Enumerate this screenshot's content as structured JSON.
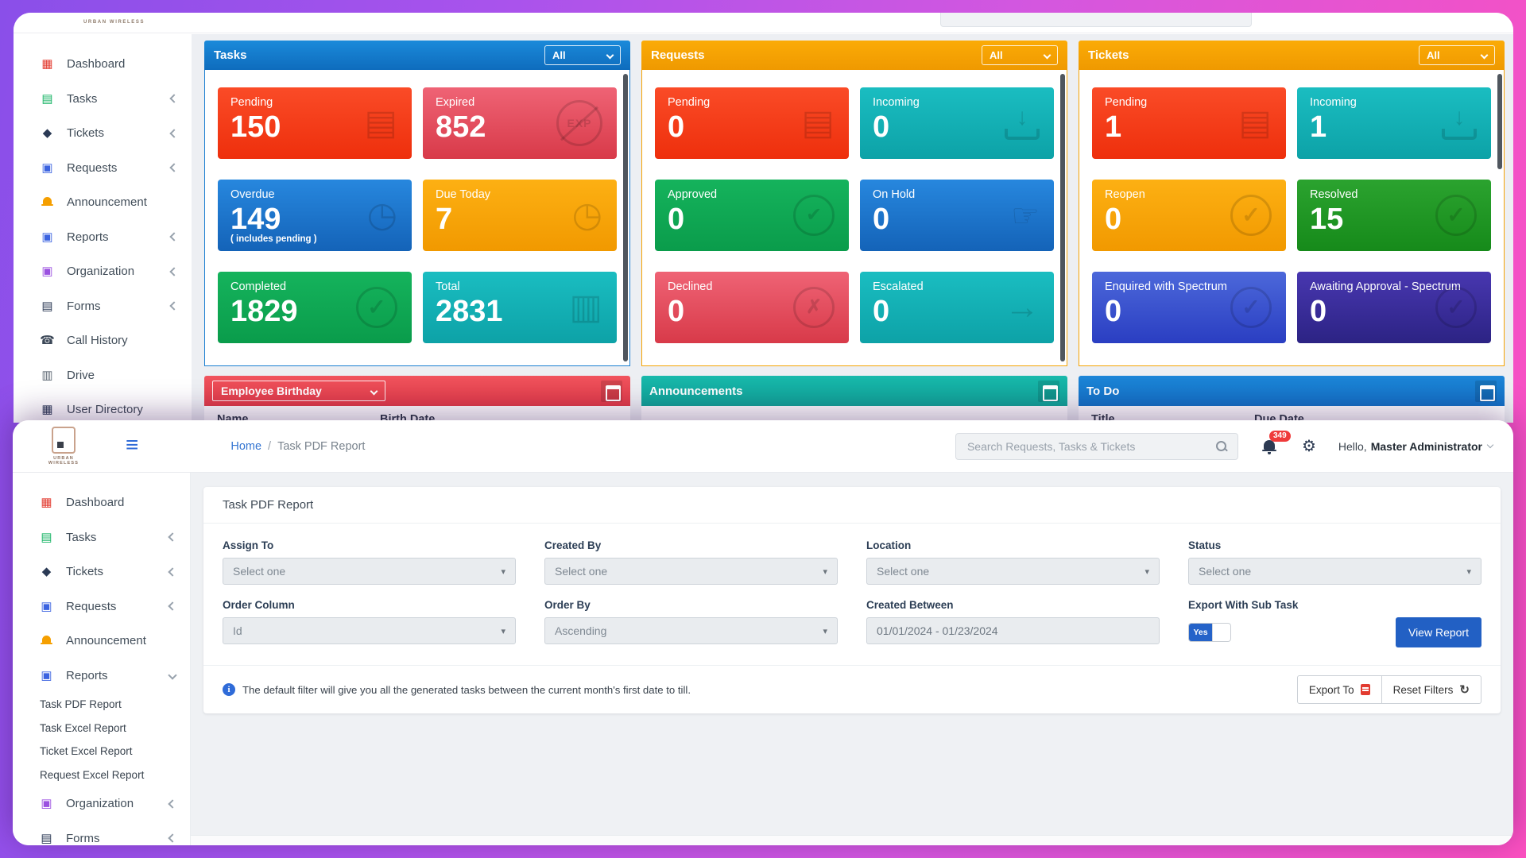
{
  "palette": {
    "accent_blue_header": "#1b8ada",
    "accent_orange_header": "#f9a602",
    "tile_red": [
      "#fa4b27",
      "#ee2f0c"
    ],
    "tile_rose": [
      "#ef6375",
      "#d83a49"
    ],
    "tile_blue": [
      "#2787de",
      "#1463b8"
    ],
    "tile_amber": [
      "#fdb013",
      "#f19900"
    ],
    "tile_green": [
      "#15b35c",
      "#0a9c4b"
    ],
    "tile_grass": [
      "#2ba32f",
      "#168a1a"
    ],
    "tile_teal": [
      "#1abdc1",
      "#0da2a7"
    ],
    "tile_royal": [
      "#4c68da",
      "#2a3ec2"
    ],
    "tile_indigo": [
      "#4837b0",
      "#2c2384"
    ],
    "panel_red": "#e9464f",
    "panel_teal": "#14aea2",
    "panel_blue": "#187bce",
    "primary_button": "#2260c4",
    "badge_red": "#ef3b3b"
  },
  "back_window": {
    "brand": "URBAN WIRELESS",
    "sidebar": {
      "items": [
        {
          "label": "Dashboard",
          "icon": "dashboard-icon",
          "chev": "none"
        },
        {
          "label": "Tasks",
          "icon": "tasks-icon",
          "chev": "left"
        },
        {
          "label": "Tickets",
          "icon": "tickets-icon",
          "chev": "left"
        },
        {
          "label": "Requests",
          "icon": "requests-icon",
          "chev": "left"
        },
        {
          "label": "Announcement",
          "icon": "announcement-icon",
          "chev": "none"
        },
        {
          "label": "Reports",
          "icon": "reports-icon",
          "chev": "left"
        },
        {
          "label": "Organization",
          "icon": "organization-icon",
          "chev": "left"
        },
        {
          "label": "Forms",
          "icon": "forms-icon",
          "chev": "left"
        },
        {
          "label": "Call History",
          "icon": "call-history-icon",
          "chev": "none"
        },
        {
          "label": "Drive",
          "icon": "drive-icon",
          "chev": "none"
        },
        {
          "label": "User Directory",
          "icon": "user-directory-icon",
          "chev": "none"
        }
      ]
    },
    "cards": [
      {
        "title": "Tasks",
        "filter": "All",
        "accent": "blue",
        "tiles": [
          {
            "label": "Pending",
            "value": "150",
            "color": "red",
            "icon": "document-icon"
          },
          {
            "label": "Expired",
            "value": "852",
            "color": "rose",
            "icon": "expired-icon"
          },
          {
            "label": "Overdue",
            "value": "149",
            "sub": "( includes pending )",
            "color": "blue",
            "icon": "clock-icon"
          },
          {
            "label": "Due Today",
            "value": "7",
            "color": "amber",
            "icon": "clock-icon"
          },
          {
            "label": "Completed",
            "value": "1829",
            "color": "green",
            "icon": "check-circle-icon"
          },
          {
            "label": "Total",
            "value": "2831",
            "color": "teal",
            "icon": "clipboard-icon"
          }
        ]
      },
      {
        "title": "Requests",
        "filter": "All",
        "accent": "orange",
        "tiles": [
          {
            "label": "Pending",
            "value": "0",
            "color": "red",
            "icon": "document-icon"
          },
          {
            "label": "Incoming",
            "value": "0",
            "color": "teal",
            "icon": "inbox-icon"
          },
          {
            "label": "Approved",
            "value": "0",
            "color": "green",
            "icon": "thumbs-up-icon"
          },
          {
            "label": "On Hold",
            "value": "0",
            "color": "blue",
            "icon": "tap-icon"
          },
          {
            "label": "Declined",
            "value": "0",
            "color": "rose",
            "icon": "thumbs-down-icon"
          },
          {
            "label": "Escalated",
            "value": "0",
            "color": "teal",
            "icon": "user-arrow-icon"
          }
        ]
      },
      {
        "title": "Tickets",
        "filter": "All",
        "accent": "orange",
        "tiles": [
          {
            "label": "Pending",
            "value": "1",
            "color": "red",
            "icon": "document-icon"
          },
          {
            "label": "Incoming",
            "value": "1",
            "color": "teal",
            "icon": "inbox-icon"
          },
          {
            "label": "Reopen",
            "value": "0",
            "color": "amber",
            "icon": "check-circle-icon"
          },
          {
            "label": "Resolved",
            "value": "15",
            "color": "grass",
            "icon": "check-circle-icon"
          },
          {
            "label": "Enquired with Spectrum",
            "value": "0",
            "color": "royal",
            "icon": "check-circle-icon"
          },
          {
            "label": "Awaiting Approval - Spectrum",
            "value": "0",
            "color": "indigo",
            "icon": "check-circle-icon"
          }
        ]
      }
    ],
    "panels": {
      "birthday": {
        "select_value": "Employee Birthday",
        "columns": [
          "Name",
          "Birth Date"
        ]
      },
      "announcements": {
        "title": "Announcements"
      },
      "todo": {
        "title": "To Do",
        "columns": [
          "Title",
          "Due Date"
        ]
      }
    }
  },
  "front_window": {
    "brand": "URBAN WIRELESS",
    "breadcrumb": {
      "home": "Home",
      "sep": "/",
      "current": "Task PDF Report"
    },
    "search_placeholder": "Search Requests, Tasks & Tickets",
    "notification_count": "349",
    "greeting_prefix": "Hello,",
    "user_name": "Master Administrator",
    "sidebar": {
      "items": [
        {
          "label": "Dashboard",
          "icon": "dashboard-icon",
          "chev": "none"
        },
        {
          "label": "Tasks",
          "icon": "tasks-icon",
          "chev": "left"
        },
        {
          "label": "Tickets",
          "icon": "tickets-icon",
          "chev": "left"
        },
        {
          "label": "Requests",
          "icon": "requests-icon",
          "chev": "left"
        },
        {
          "label": "Announcement",
          "icon": "announcement-icon",
          "chev": "none"
        },
        {
          "label": "Reports",
          "icon": "reports-icon",
          "chev": "down"
        },
        {
          "label": "Task PDF Report",
          "cls": "sub",
          "chev": "none"
        },
        {
          "label": "Task Excel Report",
          "cls": "sub",
          "chev": "none"
        },
        {
          "label": "Ticket Excel Report",
          "cls": "sub",
          "chev": "none"
        },
        {
          "label": "Request Excel Report",
          "cls": "sub",
          "chev": "none"
        },
        {
          "label": "Organization",
          "icon": "organization-icon",
          "chev": "left"
        },
        {
          "label": "Forms",
          "icon": "forms-icon",
          "chev": "left"
        }
      ]
    },
    "page": {
      "title": "Task PDF Report",
      "filters": {
        "assign_to": {
          "label": "Assign To",
          "value": "Select one"
        },
        "created_by": {
          "label": "Created By",
          "value": "Select one"
        },
        "location": {
          "label": "Location",
          "value": "Select one"
        },
        "status": {
          "label": "Status",
          "value": "Select one"
        },
        "order_column": {
          "label": "Order Column",
          "value": "Id"
        },
        "order_by": {
          "label": "Order By",
          "value": "Ascending"
        },
        "created_between": {
          "label": "Created Between",
          "value": "01/01/2024 - 01/23/2024"
        },
        "export_with_sub_task": {
          "label": "Export With Sub Task",
          "toggle": "Yes"
        }
      },
      "view_report": "View Report",
      "info": "The default filter will give you all the generated tasks between the current month's first date to till.",
      "export_to": "Export To",
      "reset_filters": "Reset Filters"
    }
  }
}
